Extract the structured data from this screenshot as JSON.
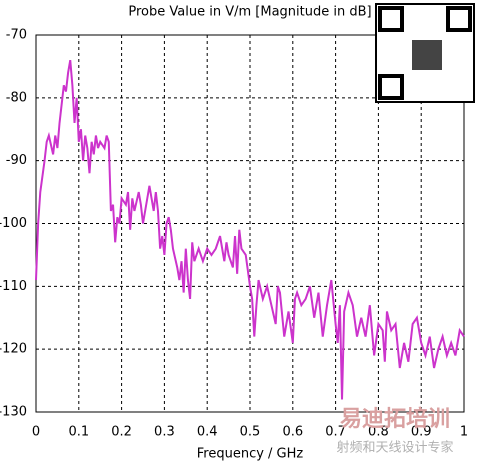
{
  "chart_data": {
    "type": "line",
    "title": "Probe Value in V/m [Magnitude in dB]",
    "x_label": "Frequency / GHz",
    "x": [
      0,
      0.005,
      0.01,
      0.02,
      0.025,
      0.03,
      0.04,
      0.045,
      0.05,
      0.055,
      0.06,
      0.065,
      0.07,
      0.075,
      0.08,
      0.085,
      0.09,
      0.095,
      0.1,
      0.105,
      0.11,
      0.115,
      0.12,
      0.125,
      0.13,
      0.135,
      0.14,
      0.145,
      0.15,
      0.16,
      0.165,
      0.17,
      0.175,
      0.18,
      0.185,
      0.19,
      0.195,
      0.2,
      0.21,
      0.215,
      0.22,
      0.225,
      0.23,
      0.24,
      0.245,
      0.25,
      0.26,
      0.265,
      0.27,
      0.275,
      0.28,
      0.285,
      0.29,
      0.295,
      0.3,
      0.305,
      0.31,
      0.315,
      0.32,
      0.33,
      0.335,
      0.34,
      0.345,
      0.35,
      0.355,
      0.36,
      0.365,
      0.37,
      0.38,
      0.39,
      0.4,
      0.41,
      0.42,
      0.43,
      0.44,
      0.445,
      0.45,
      0.46,
      0.465,
      0.47,
      0.475,
      0.48,
      0.49,
      0.5,
      0.505,
      0.51,
      0.515,
      0.52,
      0.53,
      0.54,
      0.55,
      0.56,
      0.565,
      0.57,
      0.58,
      0.59,
      0.6,
      0.605,
      0.61,
      0.62,
      0.63,
      0.64,
      0.65,
      0.66,
      0.67,
      0.68,
      0.69,
      0.7,
      0.705,
      0.71,
      0.715,
      0.72,
      0.73,
      0.74,
      0.75,
      0.76,
      0.77,
      0.78,
      0.79,
      0.8,
      0.81,
      0.815,
      0.82,
      0.83,
      0.84,
      0.85,
      0.86,
      0.87,
      0.88,
      0.89,
      0.9,
      0.91,
      0.92,
      0.93,
      0.94,
      0.95,
      0.96,
      0.97,
      0.98,
      0.99,
      1.0
    ],
    "series": [
      {
        "color": "#cc33cc",
        "values": [
          -109,
          -100,
          -95,
          -90,
          -87,
          -86,
          -89,
          -86,
          -88,
          -84,
          -81,
          -78,
          -79,
          -76,
          -74,
          -78,
          -84,
          -80,
          -87,
          -85,
          -90,
          -86,
          -88,
          -92,
          -87,
          -89,
          -86,
          -88,
          -87,
          -88,
          -86,
          -87,
          -98,
          -97,
          -103,
          -99,
          -100,
          -96,
          -97,
          -95,
          -101,
          -96,
          -98,
          -95,
          -97,
          -100,
          -96,
          -94,
          -96,
          -98,
          -95,
          -98,
          -104,
          -102,
          -105,
          -100,
          -99,
          -101,
          -104,
          -107,
          -109,
          -106,
          -111,
          -104,
          -109,
          -112,
          -103,
          -106,
          -104,
          -106,
          -104,
          -105,
          -104,
          -102,
          -106,
          -103,
          -105,
          -107,
          -102,
          -108,
          -101,
          -104,
          -105,
          -110,
          -112,
          -118,
          -113,
          -109,
          -112,
          -110,
          -113,
          -116,
          -110,
          -111,
          -118,
          -114,
          -119,
          -112,
          -111,
          -113,
          -112,
          -110,
          -115,
          -111,
          -118,
          -113,
          -109,
          -116,
          -119,
          -113,
          -128,
          -114,
          -111,
          -113,
          -118,
          -115,
          -118,
          -113,
          -121,
          -116,
          -117,
          -122,
          -114,
          -117,
          -116,
          -123,
          -119,
          -122,
          -116,
          -115,
          -119,
          -121,
          -118,
          -123,
          -120,
          -118,
          -121,
          -119,
          -121,
          -117,
          -118
        ]
      }
    ],
    "xlim": [
      0,
      1
    ],
    "xticks": [
      0,
      0.1,
      0.2,
      0.3,
      0.4,
      0.5,
      0.6,
      0.7,
      0.8,
      0.9,
      1
    ],
    "ylim": [
      -130,
      -70
    ],
    "yticks": [
      -130,
      -120,
      -110,
      -100,
      -90,
      -80,
      -70
    ],
    "grid": true,
    "watermark": [
      "易迪拓培训",
      "射频和天线设计专家"
    ]
  }
}
